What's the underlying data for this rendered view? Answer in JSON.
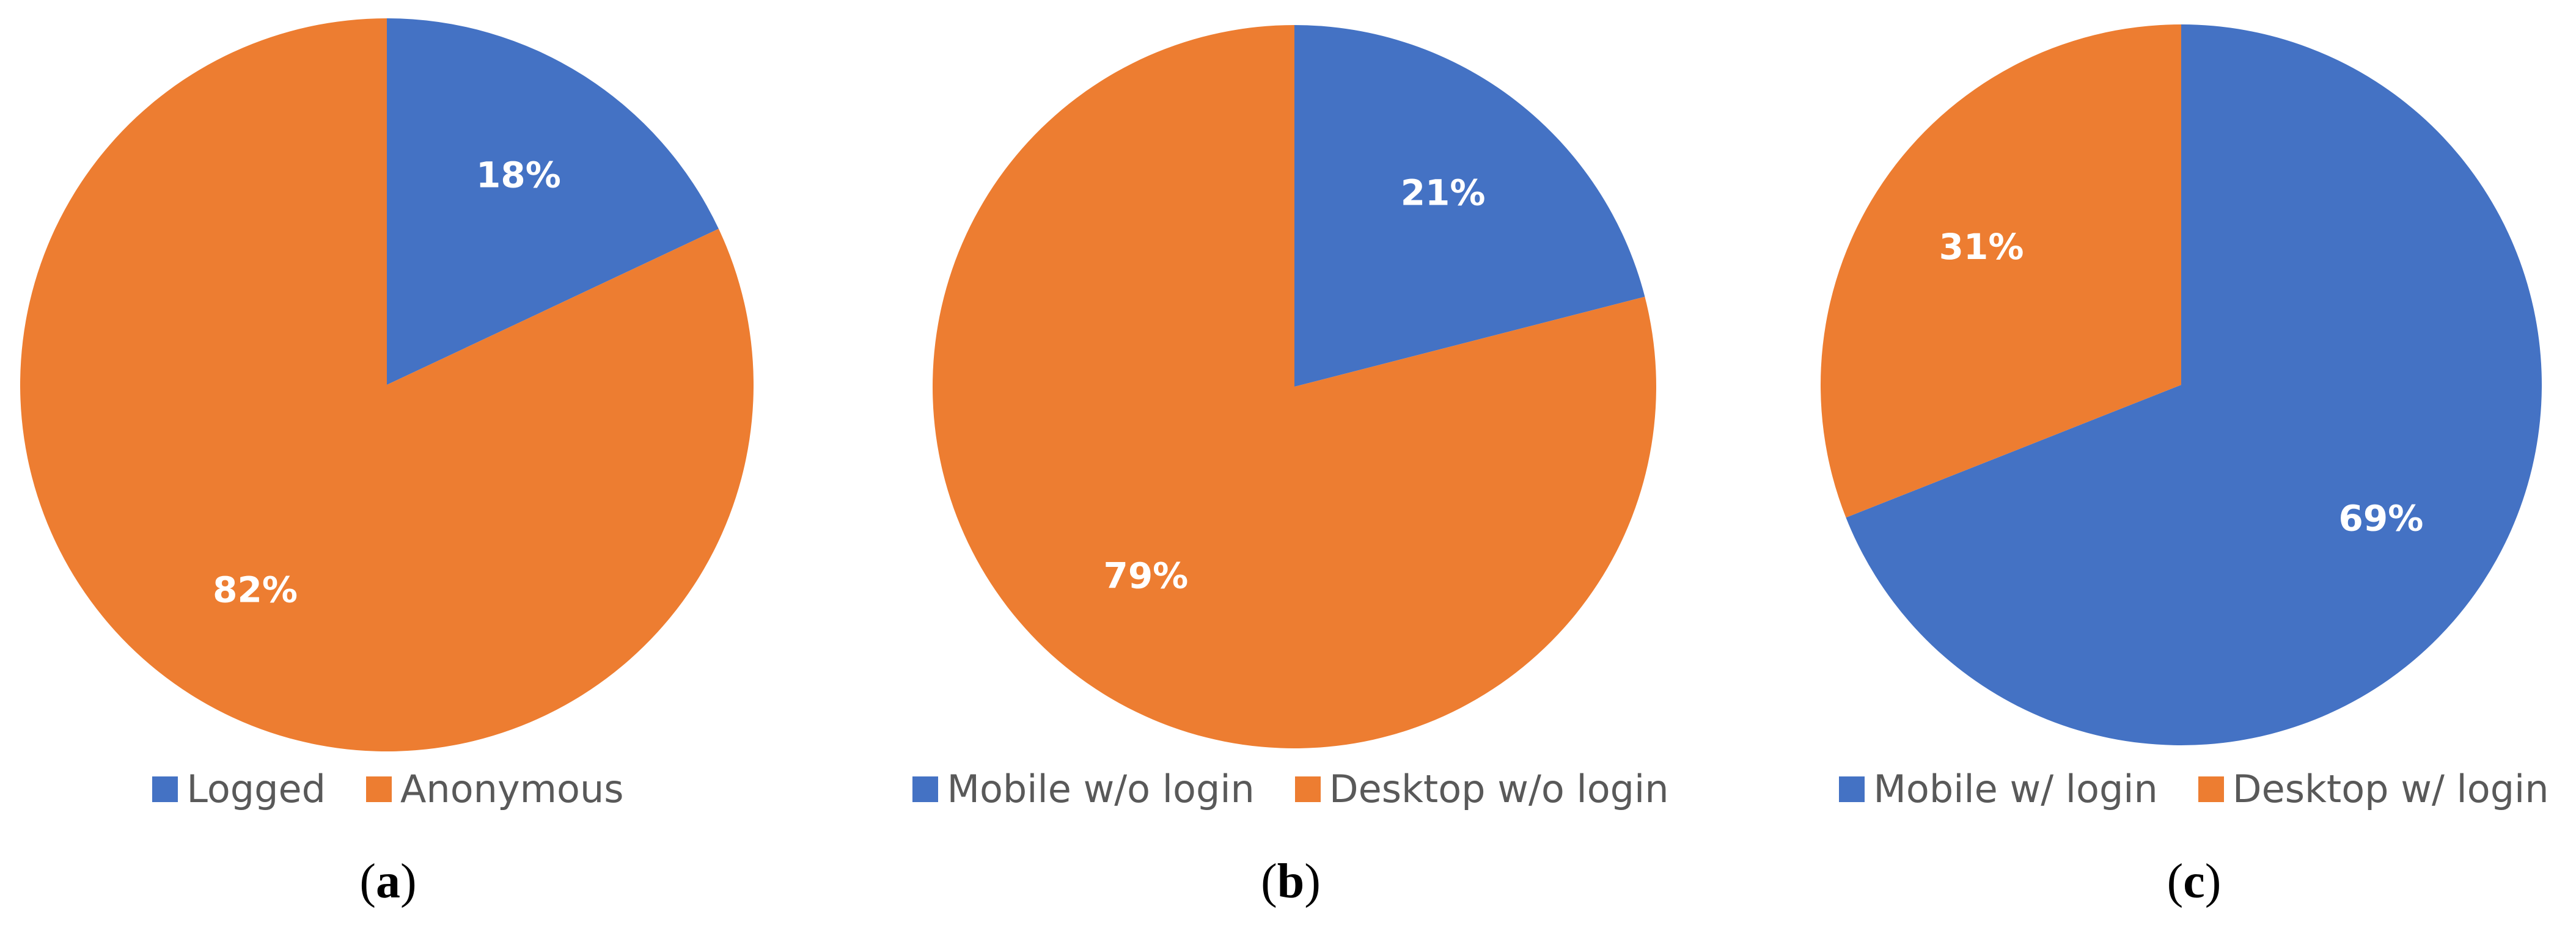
{
  "colors": {
    "blue": "#4472C4",
    "orange": "#ED7D31"
  },
  "chart_data": [
    {
      "type": "pie",
      "caption": "a",
      "start_angle_deg": 0,
      "direction": "clockwise",
      "slices": [
        {
          "label": "Logged",
          "value": 18,
          "value_label": "18%",
          "color": "#4472C4"
        },
        {
          "label": "Anonymous",
          "value": 82,
          "value_label": "82%",
          "color": "#ED7D31"
        }
      ],
      "legend": [
        "Logged",
        "Anonymous"
      ],
      "legend_position": "bottom"
    },
    {
      "type": "pie",
      "caption": "b",
      "start_angle_deg": 0,
      "direction": "clockwise",
      "slices": [
        {
          "label": "Mobile w/o login",
          "value": 21,
          "value_label": "21%",
          "color": "#4472C4"
        },
        {
          "label": "Desktop w/o login",
          "value": 79,
          "value_label": "79%",
          "color": "#ED7D31"
        }
      ],
      "legend": [
        "Mobile w/o login",
        "Desktop w/o login"
      ],
      "legend_position": "bottom"
    },
    {
      "type": "pie",
      "caption": "c",
      "start_angle_deg": 0,
      "direction": "clockwise",
      "slices": [
        {
          "label": "Mobile w/ login",
          "value": 69,
          "value_label": "69%",
          "color": "#4472C4"
        },
        {
          "label": "Desktop w/ login",
          "value": 31,
          "value_label": "31%",
          "color": "#ED7D31"
        }
      ],
      "legend": [
        "Mobile w/ login",
        "Desktop w/ login"
      ],
      "legend_position": "bottom"
    }
  ]
}
